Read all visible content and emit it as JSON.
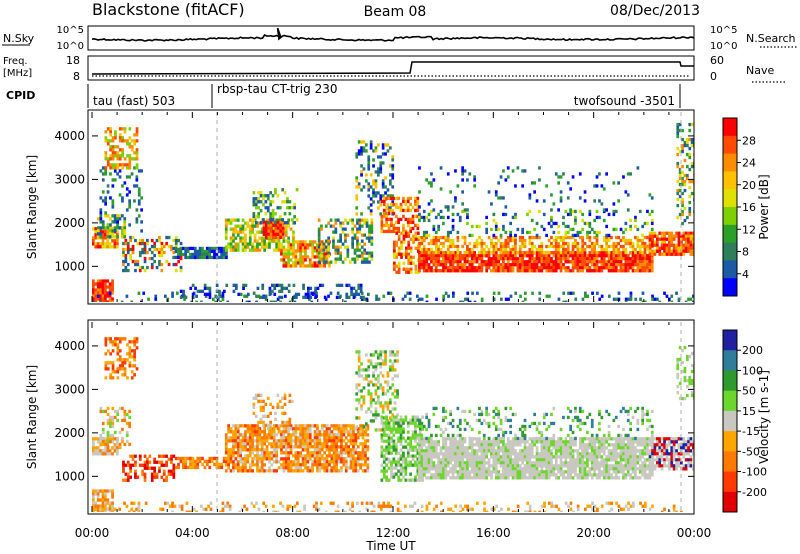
{
  "header": {
    "title": "Blackstone (fitACF)",
    "beam": "Beam 08",
    "date": "08/Dec/2013"
  },
  "strip": {
    "nsky_label": "N.Sky",
    "nsky_ticks": [
      "10^5",
      "10^0"
    ],
    "nsearch_label": "N.Search",
    "nsearch_ticks": [
      "10^5",
      "10^0"
    ],
    "freq_label_1": "Freq.",
    "freq_label_2": "[MHz]",
    "freq_ticks": [
      "18",
      "8"
    ],
    "nave_label": "Nave",
    "nave_ticks": [
      "60",
      "0"
    ],
    "cpid_label": "CPID",
    "cpid_segments": [
      "tau (fast) 503",
      "rbsp-tau CT-trig 230",
      "twofsound -3501"
    ]
  },
  "chart_data": [
    {
      "type": "heatmap",
      "quantity": "Power",
      "ylabel": "Slant Range [km]",
      "yticks": [
        "1000",
        "2000",
        "3000",
        "4000"
      ],
      "ylim": [
        180,
        4550
      ],
      "xlim": [
        0,
        24
      ],
      "xticks": [
        "00:00",
        "04:00",
        "08:00",
        "12:00",
        "16:00",
        "20:00",
        "00:00"
      ],
      "colorbar_label": "Power [dB]",
      "colorbar_ticks": [
        "28",
        "24",
        "20",
        "16",
        "12",
        "8",
        "4"
      ],
      "colorbar_colors": [
        "#ff0000",
        "#ff4a00",
        "#ff8c00",
        "#ffc000",
        "#dde000",
        "#7fd000",
        "#2aa02a",
        "#2e7d5b",
        "#1c5aa6",
        "#0000ff"
      ]
    },
    {
      "type": "heatmap",
      "quantity": "Velocity",
      "ylabel": "Slant Range [km]",
      "yticks": [
        "1000",
        "2000",
        "3000",
        "4000"
      ],
      "ylim": [
        180,
        4550
      ],
      "xlim": [
        0,
        24
      ],
      "xticks": [
        "00:00",
        "04:00",
        "08:00",
        "12:00",
        "16:00",
        "20:00",
        "00:00"
      ],
      "xlabel": "Time UT",
      "colorbar_label": "Velocity [m s-1]",
      "colorbar_ticks": [
        "200",
        "100",
        "50",
        "15",
        "-15",
        "-50",
        "-100",
        "-200"
      ],
      "colorbar_colors": [
        "#2020a0",
        "#2e7d9b",
        "#2e9a2e",
        "#6cd62c",
        "#c8c8c0",
        "#ffa500",
        "#ff7a00",
        "#ff3a00",
        "#e00000"
      ]
    }
  ]
}
